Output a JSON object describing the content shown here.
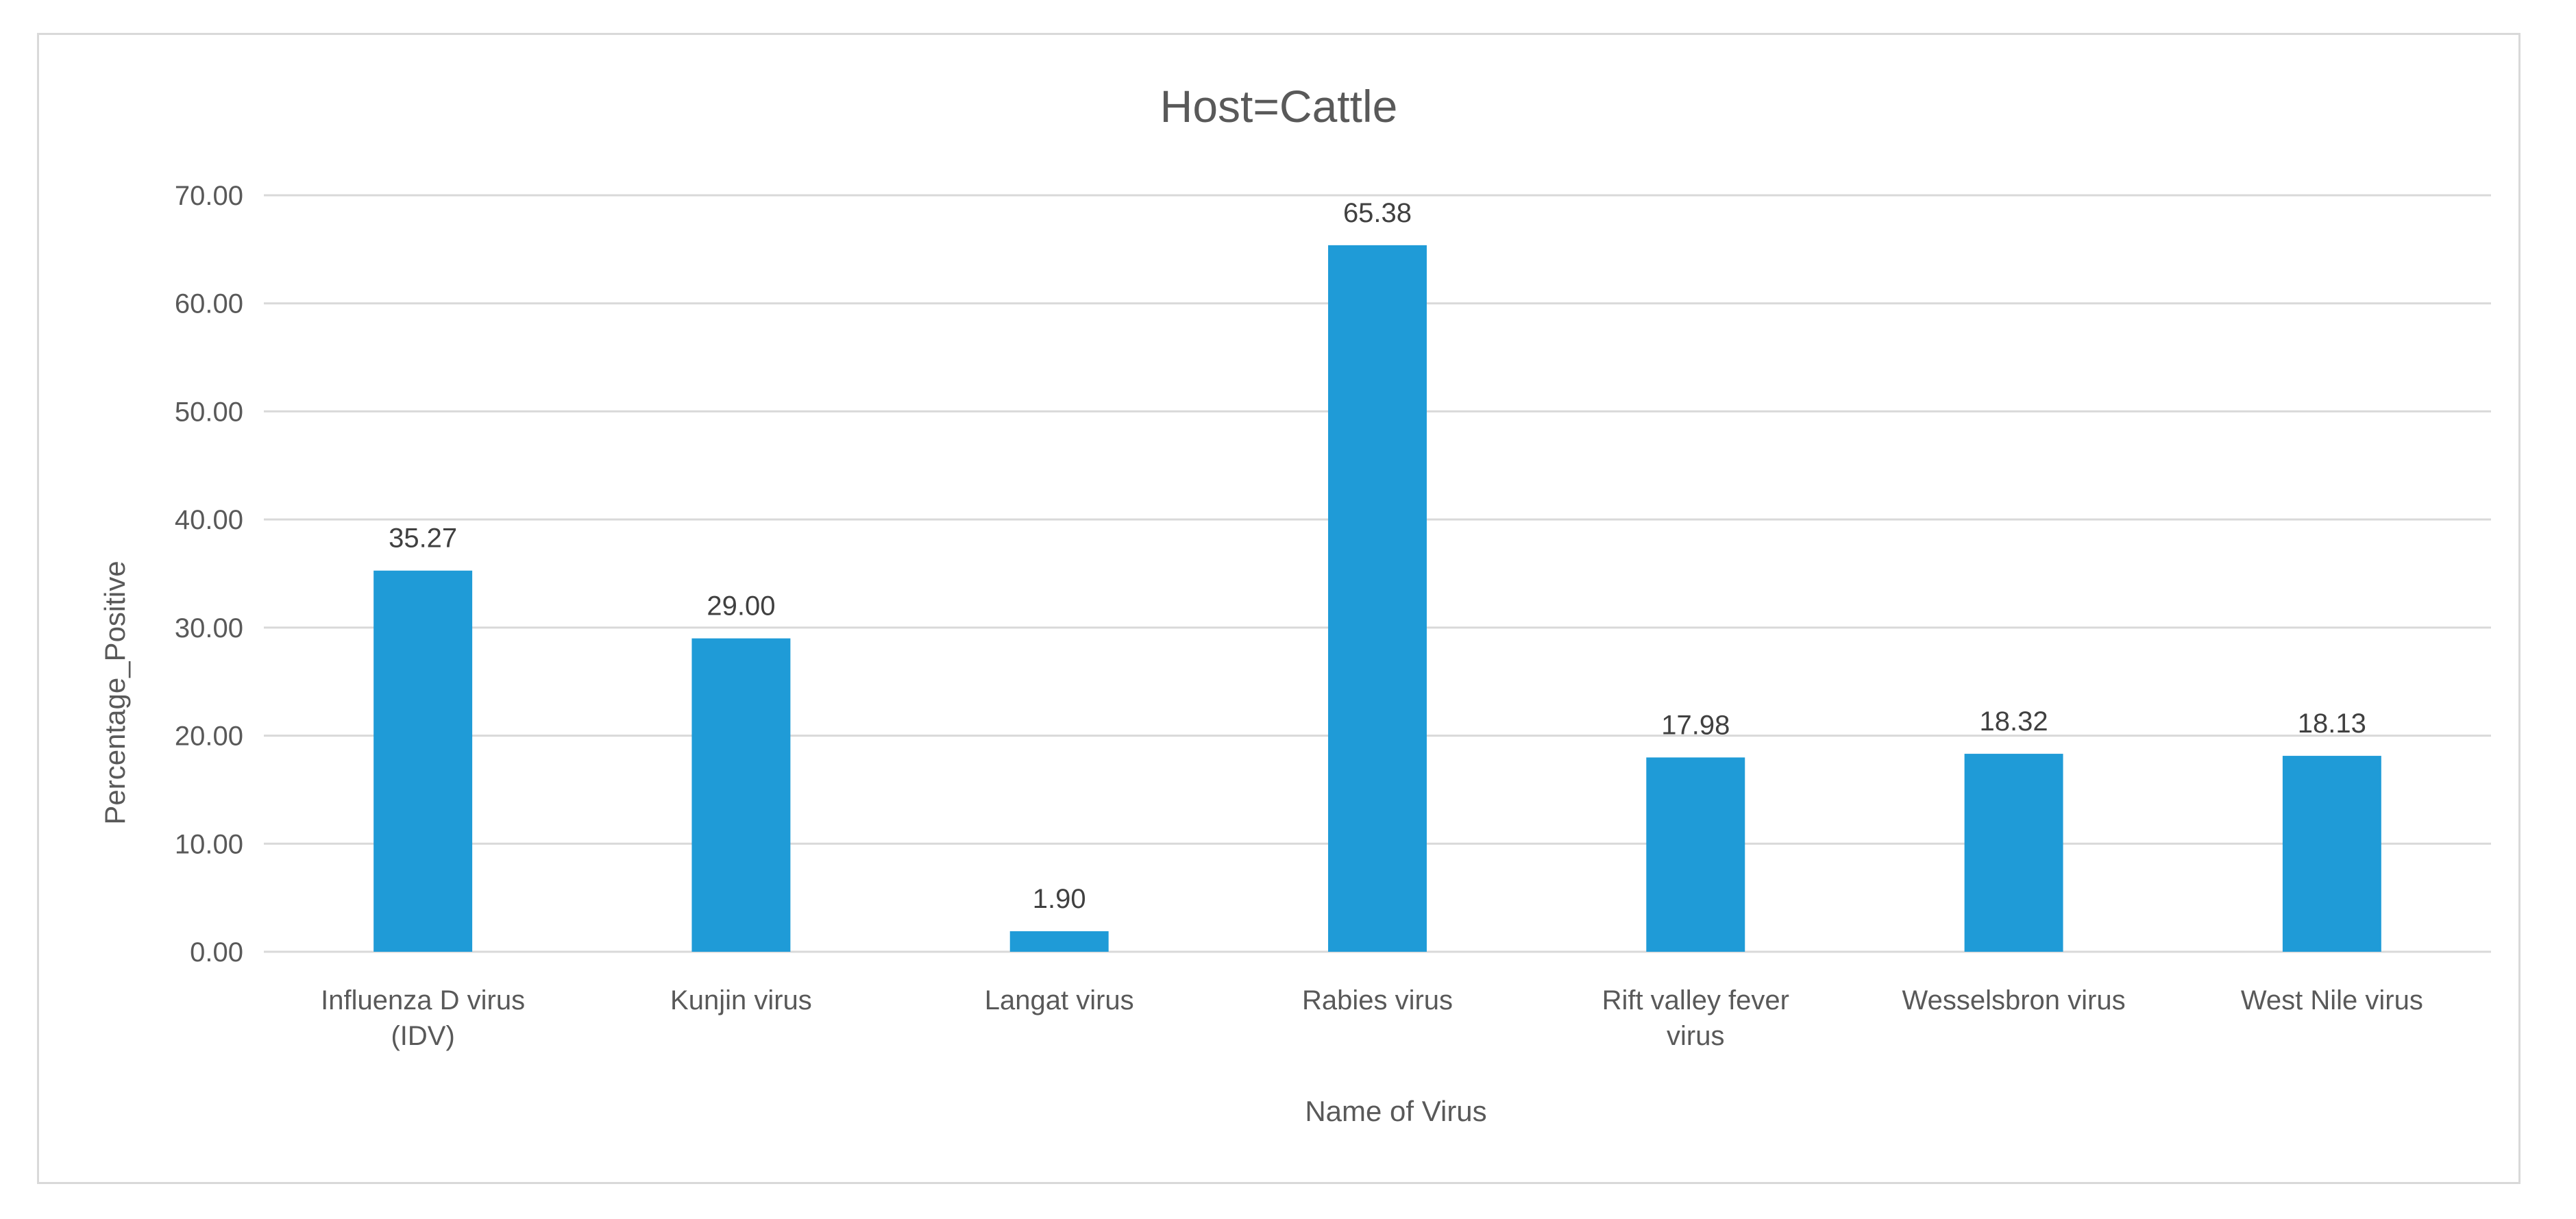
{
  "chart_data": {
    "type": "bar",
    "title": "Host=Cattle",
    "xlabel": "Name of Virus",
    "ylabel": "Percentage_Positive",
    "ylim": [
      0,
      70
    ],
    "y_ticks": [
      "0.00",
      "10.00",
      "20.00",
      "30.00",
      "40.00",
      "50.00",
      "60.00",
      "70.00"
    ],
    "categories": [
      [
        "Influenza D virus",
        "(IDV)"
      ],
      [
        "Kunjin virus"
      ],
      [
        "Langat virus"
      ],
      [
        "Rabies virus"
      ],
      [
        "Rift valley fever",
        "virus"
      ],
      [
        "Wesselsbron virus"
      ],
      [
        "West Nile virus"
      ]
    ],
    "values": [
      35.27,
      29.0,
      1.9,
      65.38,
      17.98,
      18.32,
      18.13
    ],
    "data_labels": [
      "35.27",
      "29.00",
      "1.90",
      "65.38",
      "17.98",
      "18.32",
      "18.13"
    ],
    "grid": true,
    "legend": "none",
    "colors": {
      "bar": "#1f9bd7",
      "grid": "#d9d9d9",
      "axis": "#d9d9d9"
    }
  }
}
